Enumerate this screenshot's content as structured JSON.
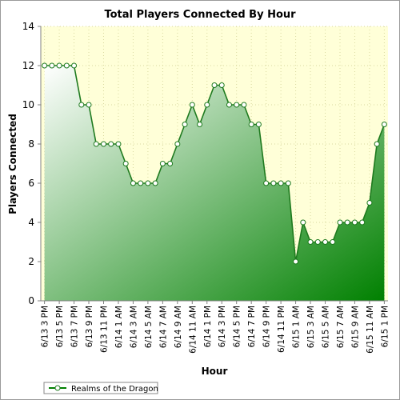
{
  "chart_data": {
    "type": "area",
    "title": "Total Players Connected By Hour",
    "xlabel": "Hour",
    "ylabel": "Players Connected",
    "ylim": [
      0,
      14
    ],
    "yticks": [
      0,
      2,
      4,
      6,
      8,
      10,
      12,
      14
    ],
    "grid": true,
    "legend_position": "bottom-left",
    "colors": {
      "line": "#1e7a1e",
      "fill_light": "#ffffff",
      "fill_dark": "#008000",
      "plot_bg": "#ffffd8",
      "grid": "#d9d9a0"
    },
    "x": [
      "6/13 3 PM",
      "6/13 4 PM",
      "6/13 5 PM",
      "6/13 6 PM",
      "6/13 7 PM",
      "6/13 8 PM",
      "6/13 9 PM",
      "6/13 10 PM",
      "6/13 11 PM",
      "6/14 12 AM",
      "6/14 1 AM",
      "6/14 2 AM",
      "6/14 3 AM",
      "6/14 4 AM",
      "6/14 5 AM",
      "6/14 6 AM",
      "6/14 7 AM",
      "6/14 8 AM",
      "6/14 9 AM",
      "6/14 10 AM",
      "6/14 11 AM",
      "6/14 12 PM",
      "6/14 1 PM",
      "6/14 2 PM",
      "6/14 3 PM",
      "6/14 4 PM",
      "6/14 5 PM",
      "6/14 6 PM",
      "6/14 7 PM",
      "6/14 8 PM",
      "6/14 9 PM",
      "6/14 10 PM",
      "6/14 11 PM",
      "6/15 12 AM",
      "6/15 1 AM",
      "6/15 2 AM",
      "6/15 3 AM",
      "6/15 4 AM",
      "6/15 5 AM",
      "6/15 6 AM",
      "6/15 7 AM",
      "6/15 8 AM",
      "6/15 9 AM",
      "6/15 10 AM",
      "6/15 11 AM",
      "6/15 12 PM",
      "6/15 1 PM"
    ],
    "x_tick_labels": [
      "6/13 3 PM",
      "6/13 5 PM",
      "6/13 7 PM",
      "6/13 9 PM",
      "6/13 11 PM",
      "6/14 1 AM",
      "6/14 3 AM",
      "6/14 5 AM",
      "6/14 7 AM",
      "6/14 9 AM",
      "6/14 11 AM",
      "6/14 1 PM",
      "6/14 3 PM",
      "6/14 5 PM",
      "6/14 7 PM",
      "6/14 9 PM",
      "6/14 11 PM",
      "6/15 1 AM",
      "6/15 3 AM",
      "6/15 5 AM",
      "6/15 7 AM",
      "6/15 9 AM",
      "6/15 11 AM",
      "6/15 1 PM"
    ],
    "series": [
      {
        "name": "Realms of the Dragon",
        "values": [
          12,
          12,
          12,
          12,
          12,
          10,
          10,
          8,
          8,
          8,
          8,
          7,
          6,
          6,
          6,
          6,
          7,
          7,
          8,
          9,
          10,
          9,
          10,
          11,
          11,
          10,
          10,
          10,
          9,
          9,
          6,
          6,
          6,
          6,
          2,
          4,
          3,
          3,
          3,
          3,
          4,
          4,
          4,
          4,
          5,
          8,
          9
        ]
      }
    ]
  }
}
